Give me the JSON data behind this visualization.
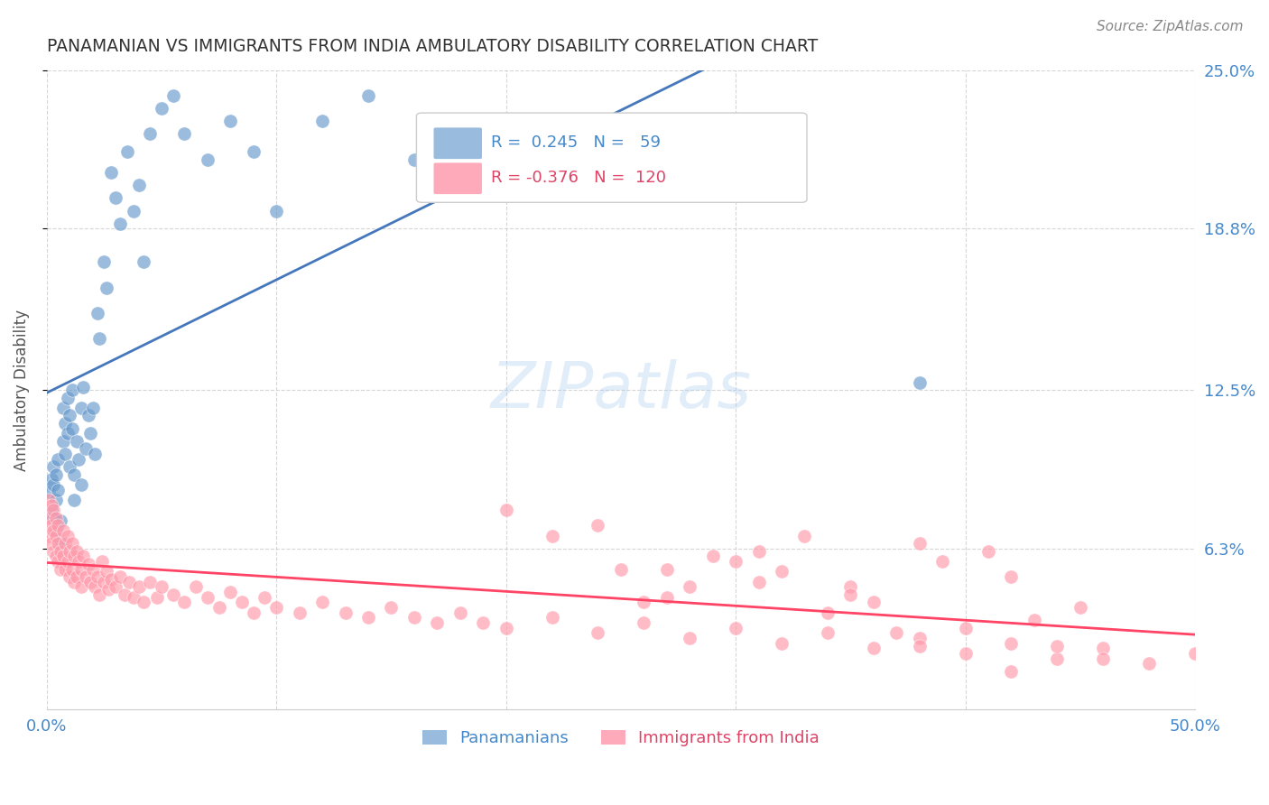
{
  "title": "PANAMANIAN VS IMMIGRANTS FROM INDIA AMBULATORY DISABILITY CORRELATION CHART",
  "source": "Source: ZipAtlas.com",
  "ylabel_label": "Ambulatory Disability",
  "xlim": [
    0.0,
    0.5
  ],
  "ylim": [
    0.0,
    0.25
  ],
  "xticks": [
    0.0,
    0.1,
    0.2,
    0.3,
    0.4,
    0.5
  ],
  "xtick_labels": [
    "0.0%",
    "",
    "",
    "",
    "",
    "50.0%"
  ],
  "ytick_labels_right": [
    "6.3%",
    "12.5%",
    "18.8%",
    "25.0%"
  ],
  "ytick_values_right": [
    0.063,
    0.125,
    0.188,
    0.25
  ],
  "panamanian_color": "#6699cc",
  "india_color": "#ff99aa",
  "trendline_pan_color": "#4477bb",
  "trendline_india_color": "#ff4466",
  "background_color": "#ffffff",
  "grid_color": "#cccccc",
  "watermark": "ZIPatlas",
  "pan_R": 0.245,
  "pan_N": 59,
  "india_R": -0.376,
  "india_N": 120,
  "legend_pan_color": "#99bbdd",
  "legend_india_color": "#ffaabb",
  "legend_pan_text_color": "#4488cc",
  "legend_india_text_color": "#dd4466",
  "pan_scatter_x": [
    0.001,
    0.002,
    0.002,
    0.003,
    0.003,
    0.003,
    0.004,
    0.004,
    0.004,
    0.005,
    0.005,
    0.006,
    0.006,
    0.007,
    0.007,
    0.008,
    0.008,
    0.009,
    0.009,
    0.01,
    0.01,
    0.011,
    0.011,
    0.012,
    0.012,
    0.013,
    0.014,
    0.015,
    0.015,
    0.016,
    0.017,
    0.018,
    0.019,
    0.02,
    0.021,
    0.022,
    0.023,
    0.025,
    0.026,
    0.028,
    0.03,
    0.032,
    0.035,
    0.038,
    0.04,
    0.042,
    0.045,
    0.05,
    0.055,
    0.06,
    0.07,
    0.08,
    0.09,
    0.1,
    0.12,
    0.14,
    0.16,
    0.2,
    0.38
  ],
  "pan_scatter_y": [
    0.085,
    0.09,
    0.078,
    0.095,
    0.088,
    0.075,
    0.092,
    0.082,
    0.07,
    0.098,
    0.086,
    0.074,
    0.065,
    0.118,
    0.105,
    0.112,
    0.1,
    0.122,
    0.108,
    0.115,
    0.095,
    0.125,
    0.11,
    0.092,
    0.082,
    0.105,
    0.098,
    0.118,
    0.088,
    0.126,
    0.102,
    0.115,
    0.108,
    0.118,
    0.1,
    0.155,
    0.145,
    0.175,
    0.165,
    0.21,
    0.2,
    0.19,
    0.218,
    0.195,
    0.205,
    0.175,
    0.225,
    0.235,
    0.24,
    0.225,
    0.215,
    0.23,
    0.218,
    0.195,
    0.23,
    0.24,
    0.215,
    0.22,
    0.128
  ],
  "india_scatter_x": [
    0.001,
    0.001,
    0.001,
    0.002,
    0.002,
    0.002,
    0.003,
    0.003,
    0.003,
    0.004,
    0.004,
    0.004,
    0.005,
    0.005,
    0.005,
    0.006,
    0.006,
    0.007,
    0.007,
    0.008,
    0.008,
    0.009,
    0.009,
    0.01,
    0.01,
    0.011,
    0.011,
    0.012,
    0.012,
    0.013,
    0.013,
    0.014,
    0.015,
    0.015,
    0.016,
    0.017,
    0.018,
    0.019,
    0.02,
    0.021,
    0.022,
    0.023,
    0.024,
    0.025,
    0.026,
    0.027,
    0.028,
    0.03,
    0.032,
    0.034,
    0.036,
    0.038,
    0.04,
    0.042,
    0.045,
    0.048,
    0.05,
    0.055,
    0.06,
    0.065,
    0.07,
    0.075,
    0.08,
    0.085,
    0.09,
    0.095,
    0.1,
    0.11,
    0.12,
    0.13,
    0.14,
    0.15,
    0.16,
    0.17,
    0.18,
    0.19,
    0.2,
    0.22,
    0.24,
    0.26,
    0.28,
    0.3,
    0.32,
    0.34,
    0.36,
    0.38,
    0.4,
    0.42,
    0.44,
    0.46,
    0.48,
    0.5,
    0.38,
    0.42,
    0.3,
    0.35,
    0.41,
    0.25,
    0.27,
    0.33,
    0.36,
    0.39,
    0.43,
    0.45,
    0.24,
    0.31,
    0.37,
    0.44,
    0.29,
    0.32,
    0.28,
    0.34,
    0.4,
    0.46,
    0.2,
    0.22,
    0.26,
    0.38,
    0.42,
    0.35,
    0.31,
    0.27
  ],
  "india_scatter_y": [
    0.075,
    0.068,
    0.082,
    0.072,
    0.065,
    0.08,
    0.07,
    0.062,
    0.078,
    0.068,
    0.06,
    0.075,
    0.065,
    0.058,
    0.072,
    0.062,
    0.055,
    0.07,
    0.06,
    0.065,
    0.055,
    0.068,
    0.058,
    0.062,
    0.052,
    0.065,
    0.055,
    0.06,
    0.05,
    0.062,
    0.052,
    0.058,
    0.055,
    0.048,
    0.06,
    0.052,
    0.057,
    0.05,
    0.055,
    0.048,
    0.052,
    0.045,
    0.058,
    0.05,
    0.054,
    0.047,
    0.051,
    0.048,
    0.052,
    0.045,
    0.05,
    0.044,
    0.048,
    0.042,
    0.05,
    0.044,
    0.048,
    0.045,
    0.042,
    0.048,
    0.044,
    0.04,
    0.046,
    0.042,
    0.038,
    0.044,
    0.04,
    0.038,
    0.042,
    0.038,
    0.036,
    0.04,
    0.036,
    0.034,
    0.038,
    0.034,
    0.032,
    0.036,
    0.03,
    0.034,
    0.028,
    0.032,
    0.026,
    0.03,
    0.024,
    0.028,
    0.022,
    0.026,
    0.02,
    0.024,
    0.018,
    0.022,
    0.065,
    0.052,
    0.058,
    0.048,
    0.062,
    0.055,
    0.044,
    0.068,
    0.042,
    0.058,
    0.035,
    0.04,
    0.072,
    0.05,
    0.03,
    0.025,
    0.06,
    0.054,
    0.048,
    0.038,
    0.032,
    0.02,
    0.078,
    0.068,
    0.042,
    0.025,
    0.015,
    0.045,
    0.062,
    0.055
  ]
}
